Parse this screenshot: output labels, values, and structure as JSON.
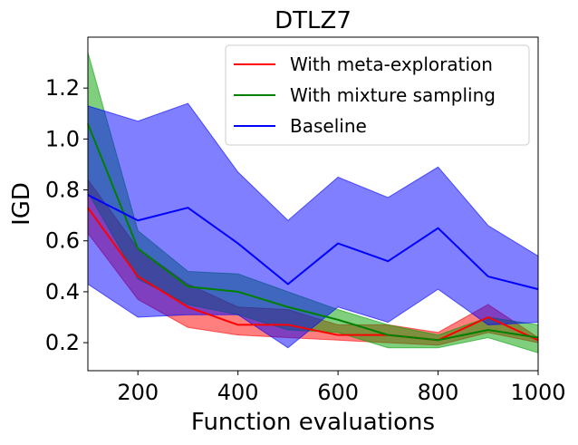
{
  "chart_data": {
    "type": "line",
    "title": "DTLZ7",
    "xlabel": "Function evaluations",
    "ylabel": "IGD",
    "xlim": [
      100,
      1000
    ],
    "ylim": [
      0.09,
      1.4
    ],
    "xticks": [
      200,
      400,
      600,
      800,
      1000
    ],
    "xtick_labels": [
      "200",
      "400",
      "600",
      "800",
      "1000"
    ],
    "yticks": [
      0.2,
      0.4,
      0.6,
      0.8,
      1.0,
      1.2
    ],
    "ytick_labels": [
      "0.2",
      "0.4",
      "0.6",
      "0.8",
      "1.0",
      "1.2"
    ],
    "legend_position": "top-right",
    "x": [
      100,
      200,
      300,
      400,
      500,
      600,
      700,
      800,
      900,
      1000
    ],
    "series": [
      {
        "name": "With meta-exploration",
        "color": "#ff0000",
        "fill": "#ff0000",
        "values": [
          0.73,
          0.46,
          0.34,
          0.27,
          0.27,
          0.23,
          0.23,
          0.21,
          0.3,
          0.21
        ],
        "lower": [
          0.63,
          0.37,
          0.26,
          0.23,
          0.22,
          0.21,
          0.2,
          0.19,
          0.24,
          0.2
        ],
        "upper": [
          0.84,
          0.57,
          0.43,
          0.34,
          0.33,
          0.27,
          0.27,
          0.24,
          0.35,
          0.22
        ]
      },
      {
        "name": "With mixture sampling",
        "color": "#008000",
        "fill": "#00a000",
        "values": [
          1.06,
          0.57,
          0.42,
          0.4,
          0.34,
          0.29,
          0.23,
          0.21,
          0.25,
          0.22
        ],
        "lower": [
          0.79,
          0.45,
          0.35,
          0.31,
          0.25,
          0.24,
          0.18,
          0.18,
          0.22,
          0.16
        ],
        "upper": [
          1.34,
          0.64,
          0.48,
          0.47,
          0.4,
          0.33,
          0.27,
          0.23,
          0.3,
          0.27
        ]
      },
      {
        "name": "Baseline",
        "color": "#0000ff",
        "fill": "#0000ff",
        "values": [
          0.78,
          0.68,
          0.73,
          0.59,
          0.43,
          0.59,
          0.52,
          0.65,
          0.46,
          0.41
        ],
        "lower": [
          0.43,
          0.3,
          0.31,
          0.31,
          0.18,
          0.34,
          0.28,
          0.41,
          0.27,
          0.28
        ],
        "upper": [
          1.13,
          1.07,
          1.14,
          0.87,
          0.68,
          0.85,
          0.77,
          0.89,
          0.66,
          0.54
        ]
      }
    ]
  }
}
